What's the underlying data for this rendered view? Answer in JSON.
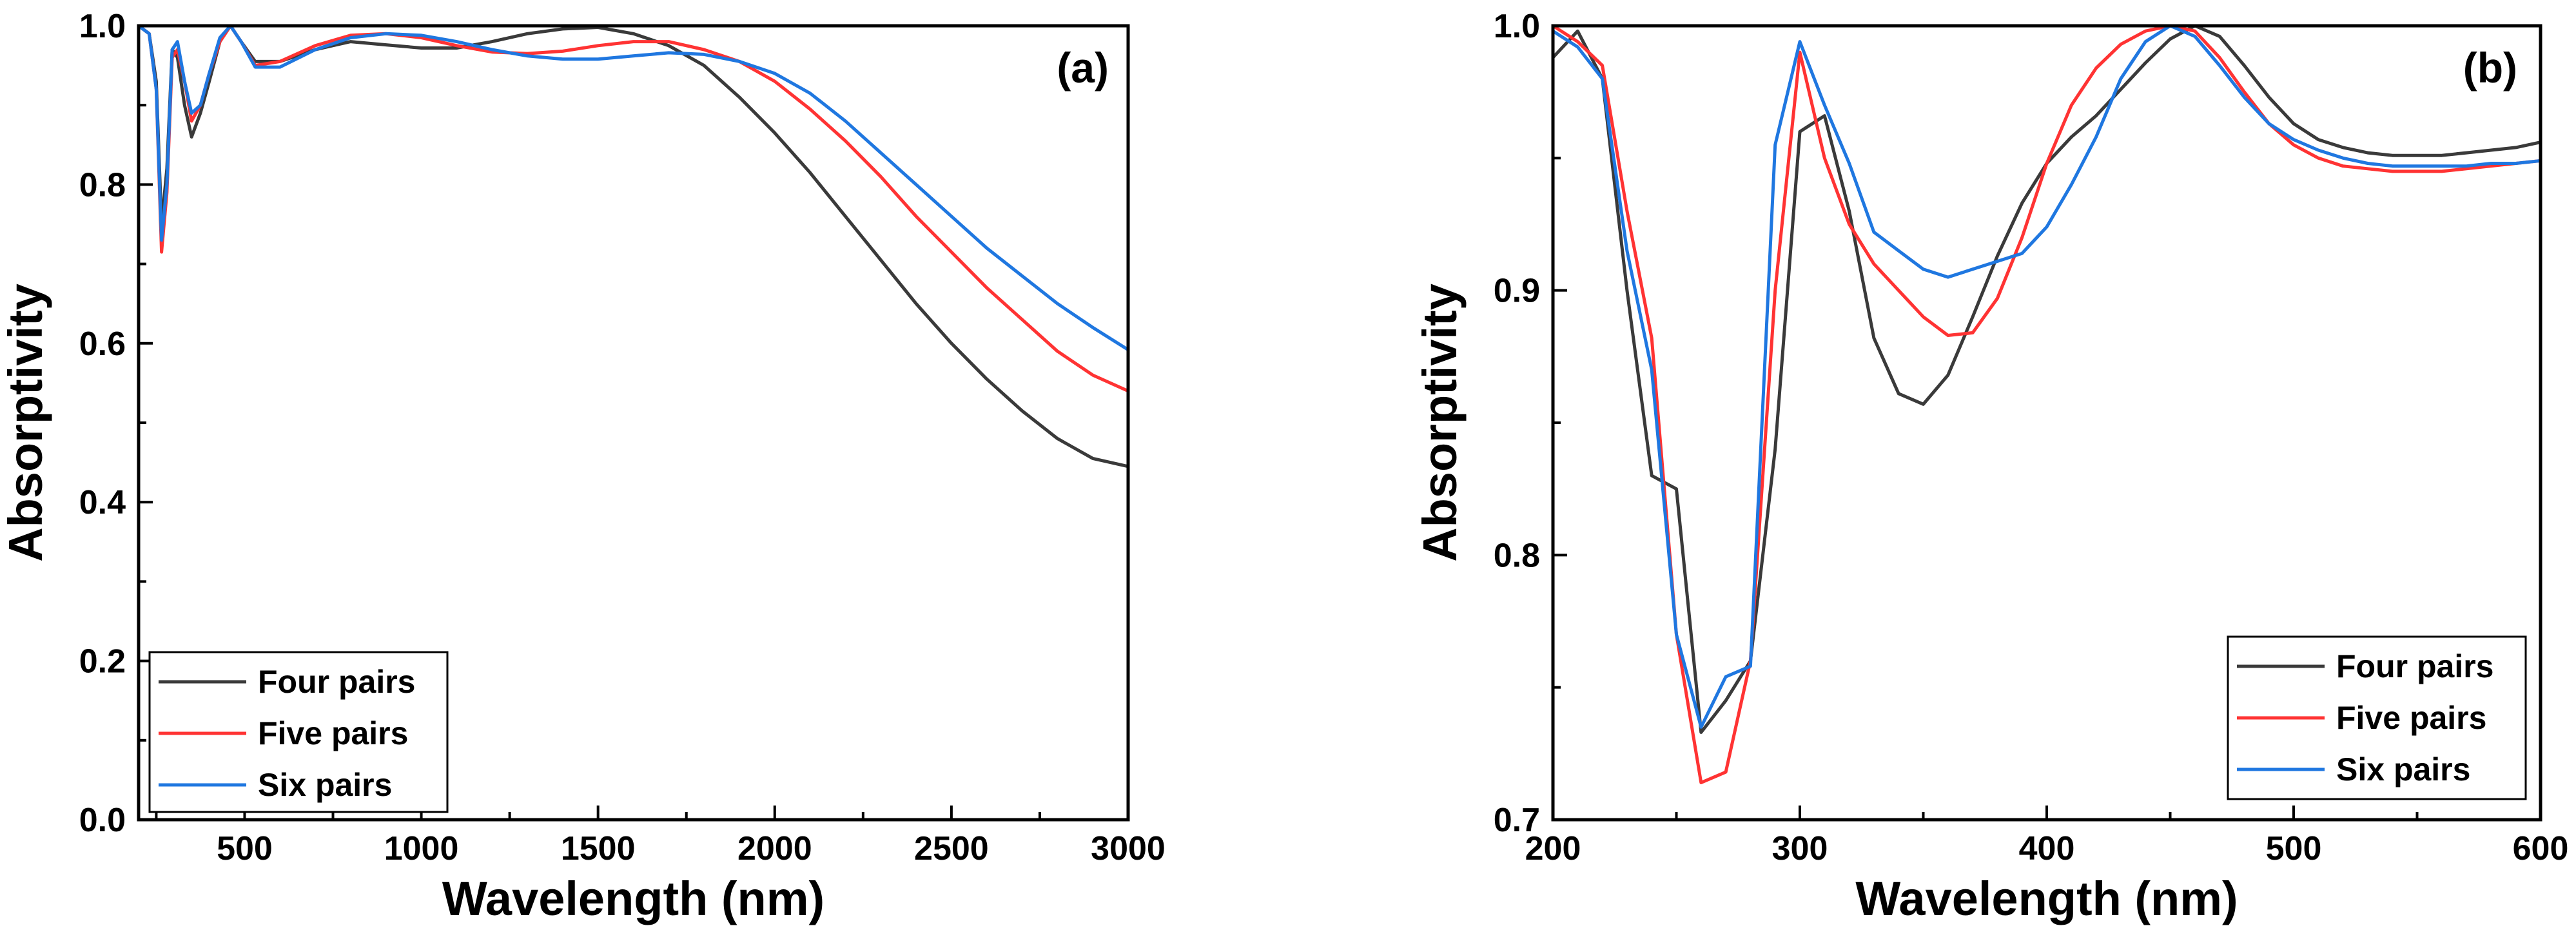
{
  "chart_data": [
    {
      "type": "line",
      "panel_label": "(a)",
      "xlabel": "Wavelength (nm)",
      "ylabel": "Absorptivity",
      "xlim": [
        200,
        3000
      ],
      "ylim": [
        0.0,
        1.0
      ],
      "xticks": [
        500,
        1000,
        1500,
        2000,
        2500,
        3000
      ],
      "yticks": [
        0.0,
        0.2,
        0.4,
        0.6,
        0.8,
        1.0
      ],
      "xtick_labels": [
        "500",
        "1000",
        "1500",
        "2000",
        "2500",
        "3000"
      ],
      "ytick_labels": [
        "0.0",
        "0.2",
        "0.4",
        "0.6",
        "0.8",
        "1.0"
      ],
      "legend_position": "bottom-left",
      "grid": false,
      "series": [
        {
          "name": "Four pairs",
          "color": "#3a3a3a",
          "x": [
            200,
            230,
            250,
            265,
            280,
            295,
            310,
            330,
            350,
            375,
            400,
            430,
            460,
            490,
            530,
            600,
            700,
            800,
            900,
            1000,
            1100,
            1200,
            1300,
            1400,
            1500,
            1600,
            1700,
            1800,
            1900,
            2000,
            2100,
            2200,
            2300,
            2400,
            2500,
            2600,
            2700,
            2800,
            2900,
            3000
          ],
          "y": [
            1.0,
            0.99,
            0.93,
            0.75,
            0.82,
            0.97,
            0.96,
            0.9,
            0.86,
            0.89,
            0.93,
            0.98,
            1.0,
            0.98,
            0.955,
            0.955,
            0.97,
            0.98,
            0.976,
            0.972,
            0.972,
            0.98,
            0.99,
            0.996,
            0.998,
            0.99,
            0.975,
            0.95,
            0.91,
            0.865,
            0.815,
            0.76,
            0.705,
            0.65,
            0.6,
            0.555,
            0.515,
            0.48,
            0.455,
            0.445
          ]
        },
        {
          "name": "Five pairs",
          "color": "#ff3333",
          "x": [
            200,
            230,
            250,
            265,
            280,
            295,
            310,
            330,
            350,
            375,
            400,
            430,
            460,
            490,
            530,
            600,
            700,
            800,
            900,
            1000,
            1100,
            1200,
            1300,
            1400,
            1500,
            1600,
            1700,
            1800,
            1900,
            2000,
            2100,
            2200,
            2300,
            2400,
            2500,
            2600,
            2700,
            2800,
            2900,
            3000
          ],
          "y": [
            1.0,
            0.99,
            0.92,
            0.715,
            0.79,
            0.96,
            0.97,
            0.93,
            0.88,
            0.9,
            0.94,
            0.98,
            1.0,
            0.98,
            0.95,
            0.955,
            0.975,
            0.988,
            0.99,
            0.985,
            0.975,
            0.967,
            0.965,
            0.968,
            0.975,
            0.98,
            0.98,
            0.97,
            0.955,
            0.93,
            0.895,
            0.855,
            0.81,
            0.76,
            0.715,
            0.67,
            0.63,
            0.59,
            0.56,
            0.54
          ]
        },
        {
          "name": "Six pairs",
          "color": "#1f77e0",
          "x": [
            200,
            230,
            250,
            265,
            280,
            295,
            310,
            330,
            350,
            375,
            400,
            430,
            460,
            490,
            530,
            600,
            700,
            800,
            900,
            1000,
            1100,
            1200,
            1300,
            1400,
            1500,
            1600,
            1700,
            1800,
            1900,
            2000,
            2100,
            2200,
            2300,
            2400,
            2500,
            2600,
            2700,
            2800,
            2900,
            3000
          ],
          "y": [
            1.0,
            0.99,
            0.92,
            0.73,
            0.8,
            0.97,
            0.98,
            0.93,
            0.89,
            0.9,
            0.94,
            0.985,
            1.0,
            0.98,
            0.948,
            0.948,
            0.97,
            0.985,
            0.99,
            0.988,
            0.98,
            0.97,
            0.962,
            0.958,
            0.958,
            0.962,
            0.966,
            0.964,
            0.955,
            0.94,
            0.915,
            0.88,
            0.84,
            0.8,
            0.76,
            0.72,
            0.685,
            0.65,
            0.62,
            0.592
          ]
        }
      ]
    },
    {
      "type": "line",
      "panel_label": "(b)",
      "xlabel": "Wavelength (nm)",
      "ylabel": "Absorptivity",
      "xlim": [
        200,
        600
      ],
      "ylim": [
        0.7,
        1.0
      ],
      "xticks": [
        200,
        300,
        400,
        500,
        600
      ],
      "yticks": [
        0.7,
        0.8,
        0.9,
        1.0
      ],
      "xtick_labels": [
        "200",
        "300",
        "400",
        "500",
        "600"
      ],
      "ytick_labels": [
        "0.7",
        "0.8",
        "0.9",
        "1.0"
      ],
      "legend_position": "bottom-right",
      "grid": false,
      "series": [
        {
          "name": "Four pairs",
          "color": "#3a3a3a",
          "x": [
            200,
            210,
            220,
            230,
            240,
            250,
            260,
            270,
            280,
            290,
            300,
            310,
            320,
            330,
            340,
            350,
            360,
            370,
            380,
            390,
            400,
            410,
            420,
            430,
            440,
            450,
            460,
            470,
            480,
            490,
            500,
            510,
            520,
            530,
            540,
            550,
            560,
            570,
            580,
            590,
            600
          ],
          "y": [
            0.988,
            0.998,
            0.98,
            0.9,
            0.83,
            0.825,
            0.733,
            0.745,
            0.76,
            0.84,
            0.96,
            0.966,
            0.93,
            0.882,
            0.861,
            0.857,
            0.868,
            0.89,
            0.913,
            0.933,
            0.948,
            0.958,
            0.966,
            0.976,
            0.986,
            0.995,
            1.0,
            0.996,
            0.985,
            0.973,
            0.963,
            0.957,
            0.954,
            0.952,
            0.951,
            0.951,
            0.951,
            0.952,
            0.953,
            0.954,
            0.956
          ]
        },
        {
          "name": "Five pairs",
          "color": "#ff3333",
          "x": [
            200,
            210,
            220,
            230,
            240,
            250,
            260,
            270,
            280,
            290,
            300,
            310,
            320,
            330,
            340,
            350,
            360,
            370,
            380,
            390,
            400,
            410,
            420,
            430,
            440,
            450,
            460,
            470,
            480,
            490,
            500,
            510,
            520,
            530,
            540,
            550,
            560,
            570,
            580,
            590,
            600
          ],
          "y": [
            1.0,
            0.994,
            0.985,
            0.93,
            0.882,
            0.77,
            0.714,
            0.718,
            0.76,
            0.9,
            0.99,
            0.95,
            0.925,
            0.91,
            0.9,
            0.89,
            0.883,
            0.884,
            0.897,
            0.92,
            0.948,
            0.97,
            0.984,
            0.993,
            0.998,
            1.0,
            0.998,
            0.988,
            0.975,
            0.963,
            0.955,
            0.95,
            0.947,
            0.946,
            0.945,
            0.945,
            0.945,
            0.946,
            0.947,
            0.948,
            0.949
          ]
        },
        {
          "name": "Six pairs",
          "color": "#1f77e0",
          "x": [
            200,
            210,
            220,
            230,
            240,
            250,
            260,
            270,
            280,
            290,
            300,
            310,
            320,
            330,
            340,
            350,
            360,
            370,
            380,
            390,
            400,
            410,
            420,
            430,
            440,
            450,
            460,
            470,
            480,
            490,
            500,
            510,
            520,
            530,
            540,
            550,
            560,
            570,
            580,
            590,
            600
          ],
          "y": [
            0.998,
            0.992,
            0.98,
            0.915,
            0.87,
            0.77,
            0.735,
            0.754,
            0.758,
            0.955,
            0.994,
            0.97,
            0.948,
            0.922,
            0.915,
            0.908,
            0.905,
            0.908,
            0.911,
            0.914,
            0.924,
            0.94,
            0.958,
            0.98,
            0.994,
            1.0,
            0.996,
            0.985,
            0.973,
            0.963,
            0.957,
            0.953,
            0.95,
            0.948,
            0.947,
            0.947,
            0.947,
            0.947,
            0.948,
            0.948,
            0.949
          ]
        }
      ]
    }
  ]
}
